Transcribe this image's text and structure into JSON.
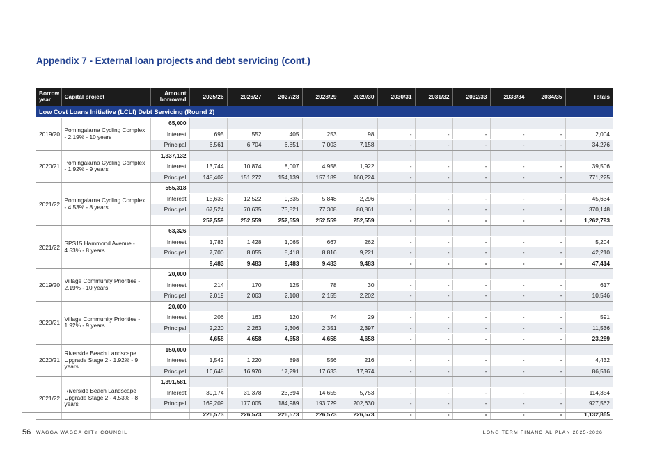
{
  "title": "Appendix 7 - External loan projects and debt servicing (cont.)",
  "headers": [
    "Borrow year",
    "Capital project",
    "Amount borrowed",
    "2025/26",
    "2026/27",
    "2027/28",
    "2028/29",
    "2029/30",
    "2030/31",
    "2031/32",
    "2032/33",
    "2033/34",
    "2034/35",
    "Totals"
  ],
  "section_title": "Low Cost Loans Initiative (LCLI) Debt Servicing (Round 2)",
  "row_labels": {
    "interest": "Interest",
    "principal": "Principal"
  },
  "projects": [
    {
      "year": "2019/20",
      "name": "Pomingalarna Cycling Complex - 2.19% - 10 years",
      "amount": "65,000",
      "interest": [
        "695",
        "552",
        "405",
        "253",
        "98",
        "-",
        "-",
        "-",
        "-",
        "-",
        "2,004"
      ],
      "principal": [
        "6,561",
        "6,704",
        "6,851",
        "7,003",
        "7,158",
        "-",
        "-",
        "-",
        "-",
        "-",
        "34,276"
      ],
      "total": null
    },
    {
      "year": "2020/21",
      "name": "Pomingalarna Cycling Complex - 1.92% - 9 years",
      "amount": "1,337,132",
      "interest": [
        "13,744",
        "10,874",
        "8,007",
        "4,958",
        "1,922",
        "-",
        "-",
        "-",
        "-",
        "-",
        "39,506"
      ],
      "principal": [
        "148,402",
        "151,272",
        "154,139",
        "157,189",
        "160,224",
        "-",
        "-",
        "-",
        "-",
        "-",
        "771,225"
      ],
      "total": null
    },
    {
      "year": "2021/22",
      "name": "Pomingalarna Cycling Complex - 4.53% - 8 years",
      "amount": "555,318",
      "interest": [
        "15,633",
        "12,522",
        "9,335",
        "5,848",
        "2,296",
        "-",
        "-",
        "-",
        "-",
        "-",
        "45,634"
      ],
      "principal": [
        "67,524",
        "70,635",
        "73,821",
        "77,308",
        "80,861",
        "-",
        "-",
        "-",
        "-",
        "-",
        "370,148"
      ],
      "total": [
        "252,559",
        "252,559",
        "252,559",
        "252,559",
        "252,559",
        "-",
        "-",
        "-",
        "-",
        "-",
        "1,262,793"
      ]
    },
    {
      "year": "2021/22",
      "name": "SPS15 Hammond Avenue - 4.53% - 8 years",
      "amount": "63,326",
      "interest": [
        "1,783",
        "1,428",
        "1,065",
        "667",
        "262",
        "-",
        "-",
        "-",
        "-",
        "-",
        "5,204"
      ],
      "principal": [
        "7,700",
        "8,055",
        "8,418",
        "8,816",
        "9,221",
        "-",
        "-",
        "-",
        "-",
        "-",
        "42,210"
      ],
      "total": [
        "9,483",
        "9,483",
        "9,483",
        "9,483",
        "9,483",
        "-",
        "-",
        "-",
        "-",
        "-",
        "47,414"
      ]
    },
    {
      "year": "2019/20",
      "name": "Village Community Priorities - 2.19% - 10 years",
      "amount": "20,000",
      "interest": [
        "214",
        "170",
        "125",
        "78",
        "30",
        "-",
        "-",
        "-",
        "-",
        "-",
        "617"
      ],
      "principal": [
        "2,019",
        "2,063",
        "2,108",
        "2,155",
        "2,202",
        "-",
        "-",
        "-",
        "-",
        "-",
        "10,546"
      ],
      "total": null
    },
    {
      "year": "2020/21",
      "name": "Village Community Priorities - 1.92% - 9 years",
      "amount": "20,000",
      "interest": [
        "206",
        "163",
        "120",
        "74",
        "29",
        "-",
        "-",
        "-",
        "-",
        "-",
        "591"
      ],
      "principal": [
        "2,220",
        "2,263",
        "2,306",
        "2,351",
        "2,397",
        "-",
        "-",
        "-",
        "-",
        "-",
        "11,536"
      ],
      "total": [
        "4,658",
        "4,658",
        "4,658",
        "4,658",
        "4,658",
        "-",
        "-",
        "-",
        "-",
        "-",
        "23,289"
      ]
    },
    {
      "year": "2020/21",
      "name": "Riverside Beach Landscape Upgrade Stage 2 - 1.92% - 9 years",
      "amount": "150,000",
      "interest": [
        "1,542",
        "1,220",
        "898",
        "556",
        "216",
        "-",
        "-",
        "-",
        "-",
        "-",
        "4,432"
      ],
      "principal": [
        "16,648",
        "16,970",
        "17,291",
        "17,633",
        "17,974",
        "-",
        "-",
        "-",
        "-",
        "-",
        "86,516"
      ],
      "total": null
    },
    {
      "year": "2021/22",
      "name": "Riverside Beach Landscape Upgrade Stage 2 - 4.53% - 8 years",
      "amount": "1,391,581",
      "interest": [
        "39,174",
        "31,378",
        "23,394",
        "14,655",
        "5,753",
        "-",
        "-",
        "-",
        "-",
        "-",
        "114,354"
      ],
      "principal": [
        "169,209",
        "177,005",
        "184,989",
        "193,729",
        "202,630",
        "-",
        "-",
        "-",
        "-",
        "-",
        "927,562"
      ],
      "total": [
        "226,573",
        "226,573",
        "226,573",
        "226,573",
        "226,573",
        "-",
        "-",
        "-",
        "-",
        "-",
        "1,132,865"
      ]
    }
  ],
  "footer": {
    "page_number": "56",
    "council": "WAGGA WAGGA CITY COUNCIL",
    "plan": "LONG TERM FINANCIAL PLAN 2025-2026"
  }
}
